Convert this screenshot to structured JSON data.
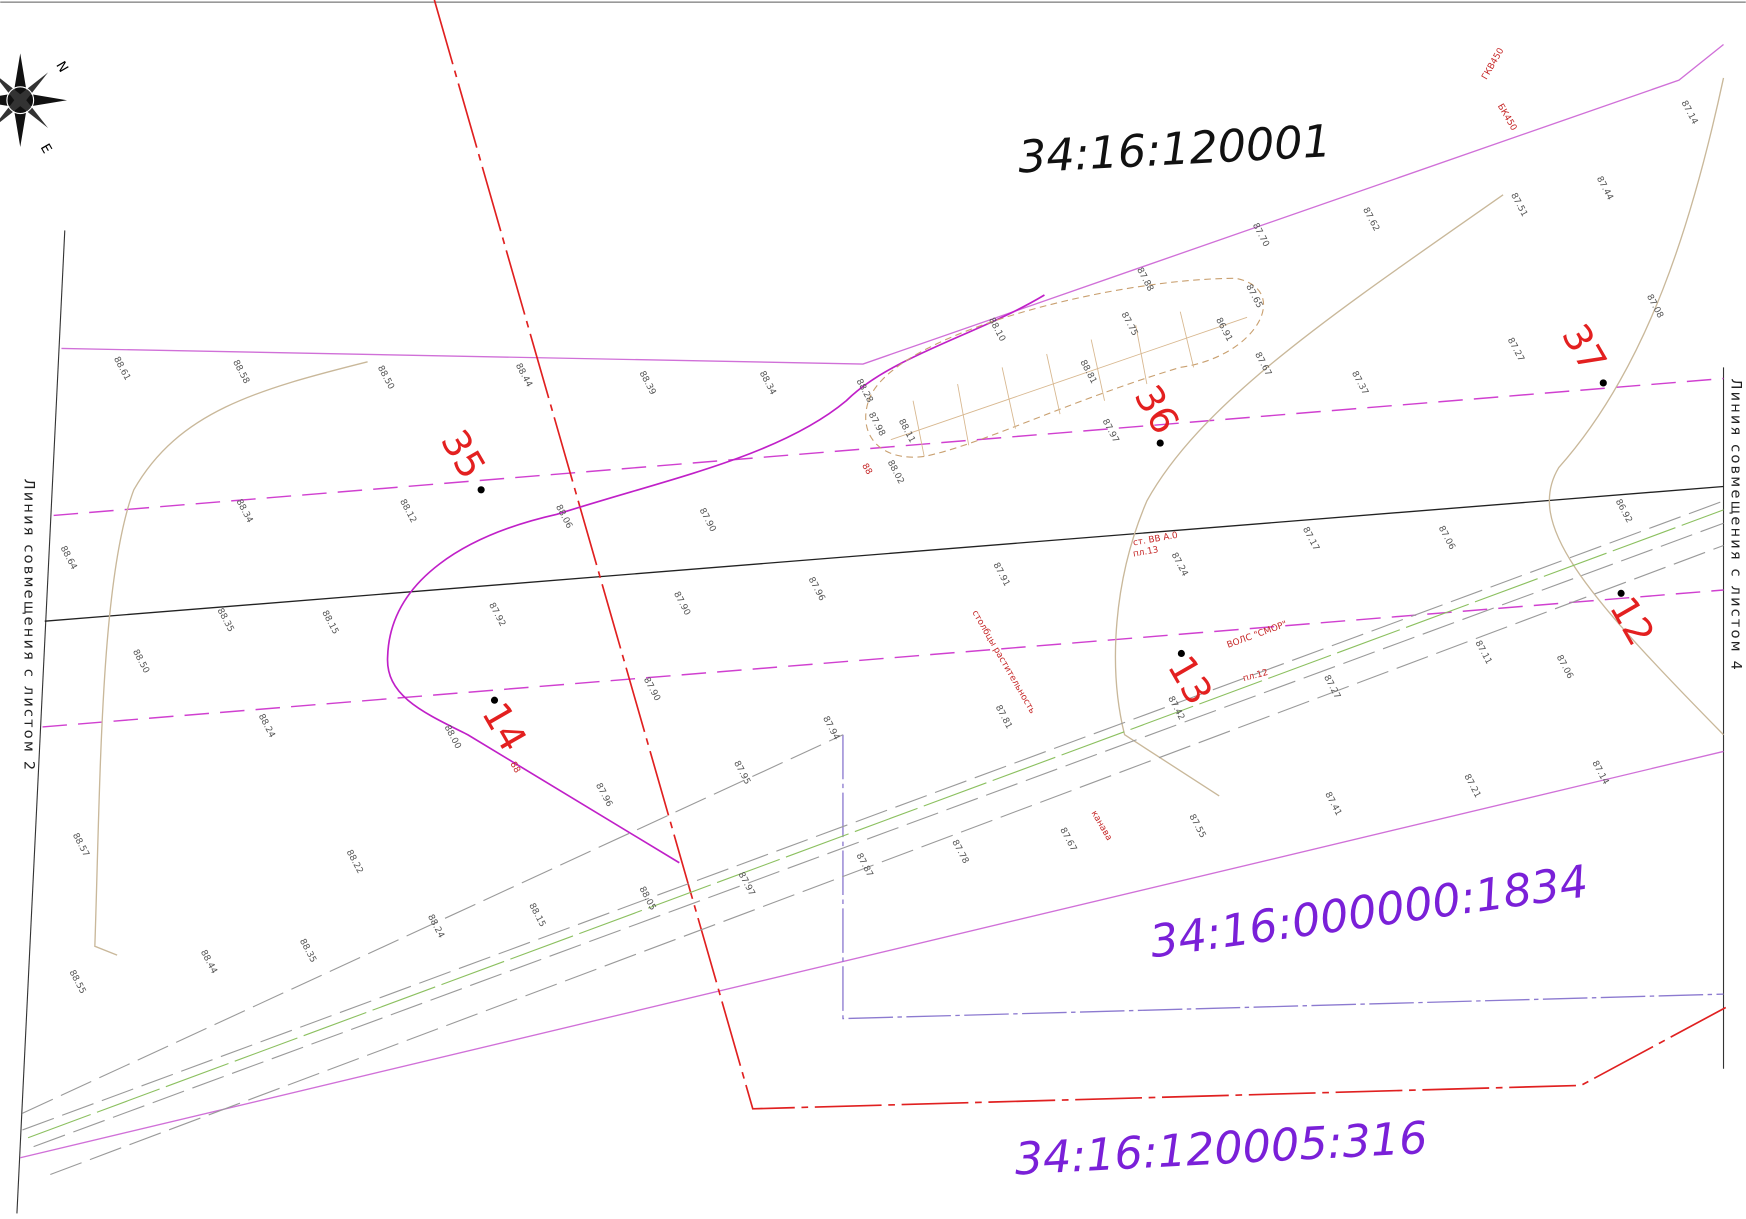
{
  "parcels": [
    "34:16:120001",
    "34:16:000000:1834",
    "34:16:120005:316"
  ],
  "points": [
    "35",
    "36",
    "37",
    "12",
    "13",
    "14"
  ],
  "sheet_lines": [
    "Линия совмещения с листом 2",
    "Линия совмещения с листом 4"
  ],
  "compass": {
    "north": "N",
    "east": "E"
  },
  "annotations": [
    "ст. ВВ А.0",
    "пл.13",
    "ВОЛС \"СМОР\"",
    "пл.12",
    "столбцы растительность",
    "канава",
    "ГКВ450",
    "БК450",
    "88",
    "88"
  ],
  "elevations": [
    "88.61",
    "88.58",
    "88.50",
    "88.44",
    "88.39",
    "88.34",
    "88.28",
    "87.98",
    "88.11",
    "88.02",
    "88.34",
    "88.12",
    "88.06",
    "87.90",
    "88.64",
    "88.35",
    "88.15",
    "87.92",
    "87.90",
    "87.96",
    "87.91",
    "87.24",
    "87.17",
    "87.06",
    "86.92",
    "88.50",
    "88.24",
    "88.00",
    "87.90",
    "87.94",
    "87.81",
    "87.42",
    "87.27",
    "87.11",
    "87.06",
    "87.95",
    "87.96",
    "88.57",
    "88.22",
    "88.24",
    "88.15",
    "88.05",
    "87.97",
    "87.87",
    "87.78",
    "87.67",
    "87.55",
    "87.41",
    "87.21",
    "87.14",
    "88.44",
    "88.35",
    "88.55",
    "88.10",
    "87.88",
    "87.70",
    "87.62",
    "87.51",
    "87.44",
    "87.14",
    "87.08",
    "87.27",
    "87.37",
    "87.97",
    "88.81",
    "87.75",
    "87.65",
    "86.91",
    "87.67"
  ]
}
